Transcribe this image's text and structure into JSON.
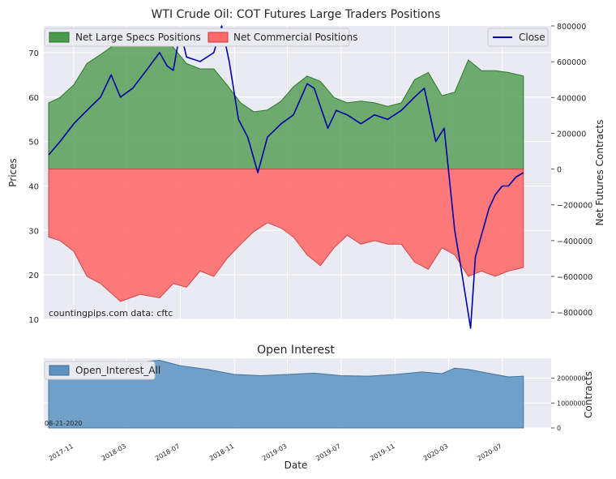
{
  "chart_data": [
    {
      "type": "area",
      "title": "WTI Crude Oil: COT Futures Large Traders Positions",
      "ylabel_left": "Prices",
      "ylabel_right": "Net Futures Contracts",
      "xlim": [
        "2017-08-25",
        "2020-10-20"
      ],
      "ylim_left": [
        10,
        76
      ],
      "ylim_right": [
        -840000,
        800000
      ],
      "yticks_left": [
        10,
        20,
        30,
        40,
        50,
        60,
        70
      ],
      "yticks_right": [
        800000,
        600000,
        400000,
        200000,
        0,
        -200000,
        -400000,
        -600000,
        -800000
      ],
      "ytick_labels_right": [
        "800000",
        "600000",
        "400000",
        "200000",
        "0",
        "−200000",
        "−400000",
        "−600000",
        "−800000"
      ],
      "legend_left": [
        "Net Large Specs Positions",
        "Net Commercial Positions"
      ],
      "legend_right": [
        "Close"
      ],
      "colors": {
        "specs": "#4c9a4c",
        "commercial": "#ff6b6b",
        "close": "#0000aa"
      },
      "annotation": "countingpips.com     data: cftc",
      "grid": true,
      "series": [
        {
          "name": "Net Large Specs Positions",
          "axis": "right",
          "x": [
            "2017-09-05",
            "2017-10-01",
            "2017-11-01",
            "2017-12-01",
            "2018-01-01",
            "2018-02-15",
            "2018-04-01",
            "2018-05-15",
            "2018-06-15",
            "2018-07-15",
            "2018-08-15",
            "2018-09-15",
            "2018-10-15",
            "2018-11-15",
            "2018-12-15",
            "2019-01-15",
            "2019-02-15",
            "2019-03-15",
            "2019-04-15",
            "2019-05-15",
            "2019-06-15",
            "2019-07-15",
            "2019-08-15",
            "2019-09-15",
            "2019-10-15",
            "2019-11-15",
            "2019-12-15",
            "2020-01-15",
            "2020-02-15",
            "2020-03-15",
            "2020-04-15",
            "2020-05-15",
            "2020-06-15",
            "2020-07-15",
            "2020-08-18"
          ],
          "values": [
            370000,
            400000,
            470000,
            590000,
            640000,
            720000,
            750000,
            740000,
            680000,
            590000,
            560000,
            560000,
            470000,
            370000,
            320000,
            330000,
            380000,
            460000,
            520000,
            490000,
            400000,
            370000,
            380000,
            370000,
            350000,
            370000,
            500000,
            540000,
            410000,
            430000,
            610000,
            550000,
            550000,
            540000,
            520000
          ]
        },
        {
          "name": "Net Commercial Positions",
          "axis": "right",
          "x": [
            "2017-09-05",
            "2017-10-01",
            "2017-11-01",
            "2017-12-01",
            "2018-01-01",
            "2018-02-15",
            "2018-04-01",
            "2018-05-15",
            "2018-06-15",
            "2018-07-15",
            "2018-08-15",
            "2018-09-15",
            "2018-10-15",
            "2018-11-15",
            "2018-12-15",
            "2019-01-15",
            "2019-02-15",
            "2019-03-15",
            "2019-04-15",
            "2019-05-15",
            "2019-06-15",
            "2019-07-15",
            "2019-08-15",
            "2019-09-15",
            "2019-10-15",
            "2019-11-15",
            "2019-12-15",
            "2020-01-15",
            "2020-02-15",
            "2020-03-15",
            "2020-04-15",
            "2020-05-15",
            "2020-06-15",
            "2020-07-15",
            "2020-08-18"
          ],
          "values": [
            -380000,
            -400000,
            -460000,
            -600000,
            -640000,
            -740000,
            -700000,
            -720000,
            -640000,
            -660000,
            -570000,
            -600000,
            -500000,
            -420000,
            -350000,
            -300000,
            -330000,
            -380000,
            -480000,
            -540000,
            -440000,
            -370000,
            -420000,
            -400000,
            -420000,
            -420000,
            -520000,
            -560000,
            -440000,
            -480000,
            -600000,
            -570000,
            -600000,
            -570000,
            -550000
          ]
        },
        {
          "name": "Close",
          "axis": "left",
          "x": [
            "2017-09-05",
            "2017-10-01",
            "2017-11-01",
            "2017-12-01",
            "2018-01-01",
            "2018-01-25",
            "2018-02-15",
            "2018-03-15",
            "2018-04-15",
            "2018-05-15",
            "2018-06-01",
            "2018-06-15",
            "2018-07-01",
            "2018-07-15",
            "2018-08-15",
            "2018-09-15",
            "2018-10-03",
            "2018-10-20",
            "2018-11-10",
            "2018-12-01",
            "2018-12-24",
            "2019-01-15",
            "2019-02-15",
            "2019-03-15",
            "2019-04-15",
            "2019-05-01",
            "2019-06-01",
            "2019-06-20",
            "2019-07-15",
            "2019-08-15",
            "2019-09-15",
            "2019-10-15",
            "2019-11-15",
            "2019-12-15",
            "2020-01-06",
            "2020-02-01",
            "2020-02-20",
            "2020-03-15",
            "2020-04-01",
            "2020-04-20",
            "2020-05-01",
            "2020-05-15",
            "2020-06-01",
            "2020-06-15",
            "2020-07-01",
            "2020-07-15",
            "2020-08-01",
            "2020-08-18"
          ],
          "values": [
            47,
            50,
            54,
            57,
            60,
            65,
            60,
            62,
            66,
            70,
            67,
            66,
            75,
            69,
            68,
            70,
            76,
            68,
            55,
            51,
            43,
            51,
            54,
            56,
            63,
            62,
            53,
            57,
            56,
            54,
            56,
            55,
            57,
            60,
            62,
            50,
            53,
            30,
            20,
            8,
            24,
            29,
            35,
            38,
            40,
            40,
            42,
            43
          ]
        }
      ]
    },
    {
      "type": "area",
      "title": "Open Interest",
      "xlabel": "Date",
      "ylabel": "Contracts",
      "ylim": [
        0,
        2800000
      ],
      "yticks": [
        0,
        1000000,
        2000000
      ],
      "ytick_labels": [
        "0",
        "1000000",
        "2000000"
      ],
      "legend": [
        "Open_Interest_All"
      ],
      "colors": {
        "open_interest": "#5b92c0"
      },
      "annotation": "08-21-2020",
      "xticks": [
        "2017-11",
        "2018-03",
        "2018-07",
        "2018-11",
        "2019-03",
        "2019-07",
        "2019-11",
        "2020-03",
        "2020-07"
      ],
      "grid": true,
      "series": [
        {
          "name": "Open_Interest_All",
          "x": [
            "2017-09-05",
            "2017-11-01",
            "2018-01-01",
            "2018-03-01",
            "2018-05-15",
            "2018-07-01",
            "2018-09-01",
            "2018-11-01",
            "2019-01-01",
            "2019-03-01",
            "2019-05-01",
            "2019-07-01",
            "2019-09-01",
            "2019-11-01",
            "2020-01-01",
            "2020-02-15",
            "2020-03-15",
            "2020-04-15",
            "2020-05-15",
            "2020-06-15",
            "2020-07-15",
            "2020-08-18"
          ],
          "values": [
            2350000,
            2450000,
            2550000,
            2600000,
            2720000,
            2500000,
            2350000,
            2150000,
            2100000,
            2150000,
            2200000,
            2100000,
            2080000,
            2150000,
            2250000,
            2180000,
            2400000,
            2350000,
            2250000,
            2150000,
            2050000,
            2080000
          ]
        }
      ]
    }
  ]
}
